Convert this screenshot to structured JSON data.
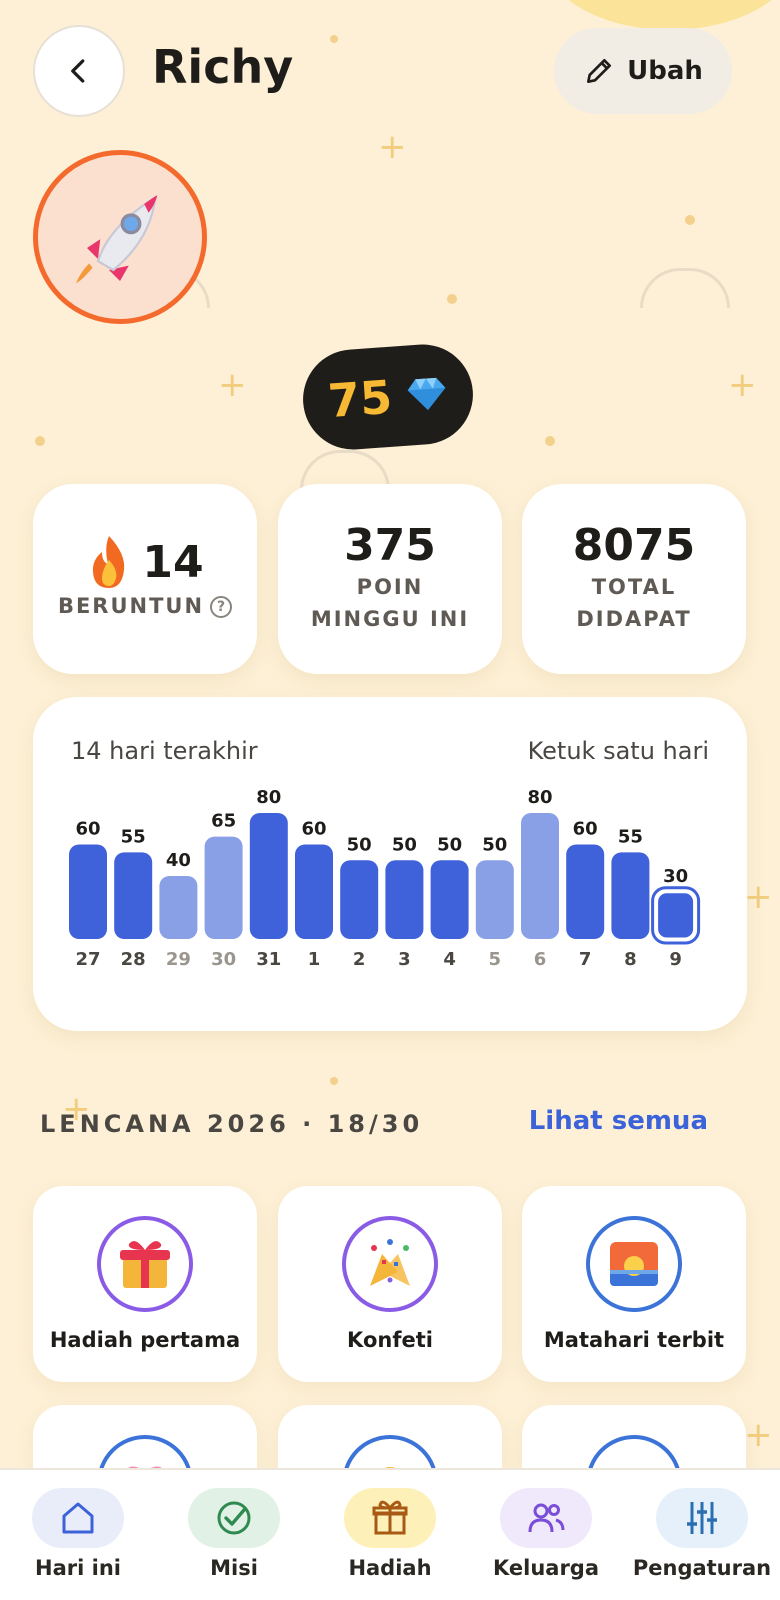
{
  "header": {
    "title": "Richy",
    "edit_label": "Ubah"
  },
  "gems": {
    "value": "75"
  },
  "stats": {
    "streak_value": "14",
    "streak_label": "BERUNTUN",
    "week_points": "375",
    "week_label": "POIN MINGGU INI",
    "total_points": "8075",
    "total_label": "TOTAL DIDAPAT"
  },
  "chart_data": {
    "type": "bar",
    "title": "14 hari terakhir",
    "hint": "Ketuk satu hari",
    "categories": [
      "27",
      "28",
      "29",
      "30",
      "31",
      "1",
      "2",
      "3",
      "4",
      "5",
      "6",
      "7",
      "8",
      "9"
    ],
    "values": [
      60,
      55,
      40,
      65,
      80,
      60,
      50,
      50,
      50,
      50,
      80,
      60,
      55,
      30
    ],
    "weekend": [
      false,
      false,
      true,
      true,
      false,
      false,
      false,
      false,
      false,
      true,
      true,
      false,
      false,
      false
    ],
    "selected_index": 13,
    "ylim": [
      0,
      80
    ],
    "colors": {
      "weekday": "#3f62db",
      "weekend": "#8aa0e6",
      "selected_outline": "#3f62db"
    }
  },
  "badges": {
    "section_title": "LENCANA 2026 · 18/30",
    "see_all": "Lihat semua",
    "items": [
      {
        "name": "Hadiah pertama",
        "icon": "gift-icon"
      },
      {
        "name": "Konfeti",
        "icon": "confetti-icon"
      },
      {
        "name": "Matahari terbit",
        "icon": "sunrise-icon"
      },
      {
        "name": "",
        "icon": "heart-icon"
      },
      {
        "name": "",
        "icon": "flower-icon"
      },
      {
        "name": "",
        "icon": "rainbow-icon"
      }
    ]
  },
  "nav": {
    "items": [
      {
        "label": "Hari ini",
        "icon": "home-icon",
        "color": "#e8edf9"
      },
      {
        "label": "Misi",
        "icon": "check-circle-icon",
        "color": "#e2f1e5"
      },
      {
        "label": "Hadiah",
        "icon": "gift-icon",
        "color": "#fdf0b8"
      },
      {
        "label": "Keluarga",
        "icon": "people-icon",
        "color": "#f0e8fb"
      },
      {
        "label": "Pengaturan",
        "icon": "sliders-icon",
        "color": "#e6f0fa"
      }
    ]
  }
}
